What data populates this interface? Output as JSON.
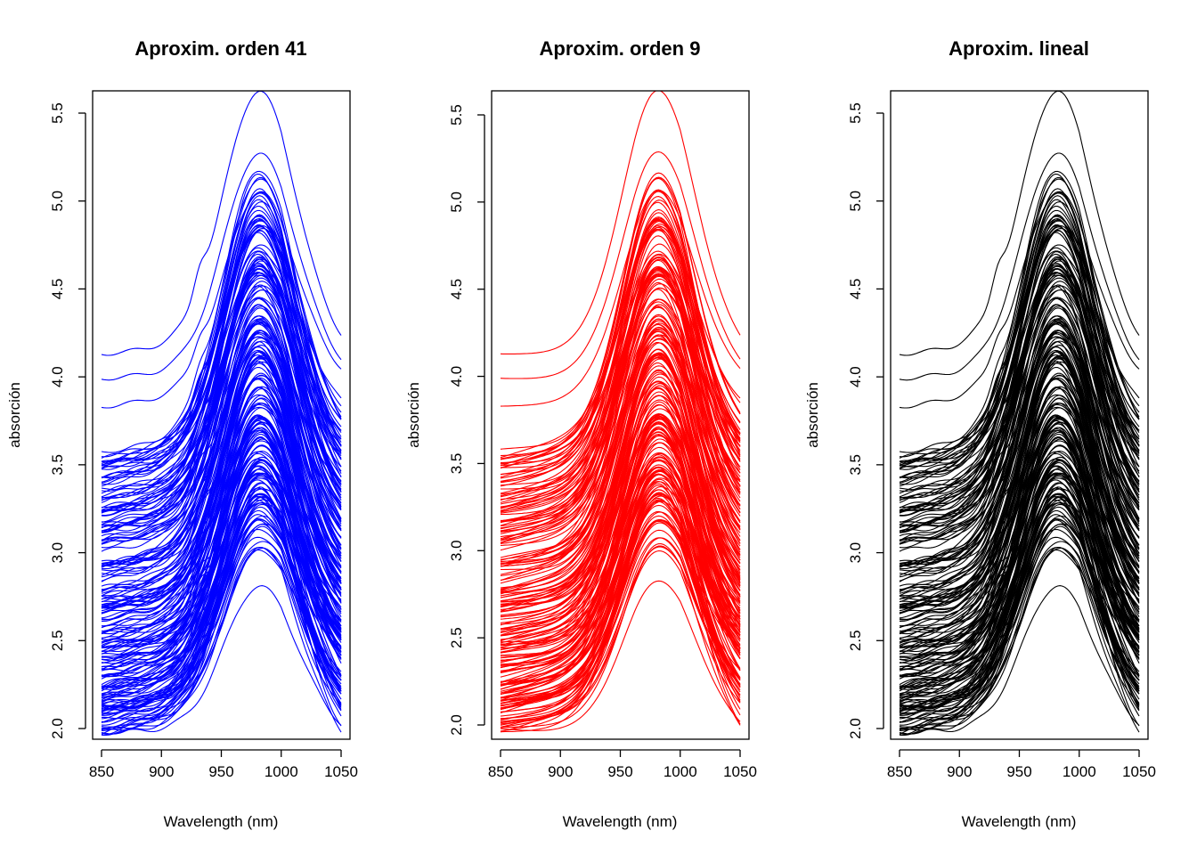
{
  "chart_data": [
    {
      "type": "line",
      "title": "Aproxim. orden 41",
      "xlabel": "Wavelength (nm)",
      "ylabel": "absorción",
      "xlim": [
        850,
        1050
      ],
      "ylim": [
        2.0,
        5.5
      ],
      "x_ticks": [
        "850",
        "900",
        "950",
        "1000",
        "1050"
      ],
      "y_ticks": [
        "2.0",
        "2.5",
        "3.0",
        "3.5",
        "4.0",
        "4.5",
        "5.0",
        "5.5"
      ],
      "line_color": "#0000ff",
      "smoothing": "none",
      "series_count": 215
    },
    {
      "type": "line",
      "title": "Aproxim. orden 9",
      "xlabel": "Wavelength (nm)",
      "ylabel": "absorción",
      "xlim": [
        850,
        1050
      ],
      "ylim": [
        2.0,
        5.5
      ],
      "x_ticks": [
        "850",
        "900",
        "950",
        "1000",
        "1050"
      ],
      "y_ticks": [
        "2.0",
        "2.5",
        "3.0",
        "3.5",
        "4.0",
        "4.5",
        "5.0",
        "5.5"
      ],
      "line_color": "#ff0000",
      "smoothing": "strong",
      "series_count": 215
    },
    {
      "type": "line",
      "title": "Aproxim. lineal",
      "xlabel": "Wavelength (nm)",
      "ylabel": "absorción",
      "xlim": [
        850,
        1050
      ],
      "ylim": [
        2.0,
        5.5
      ],
      "x_ticks": [
        "850",
        "900",
        "950",
        "1000",
        "1050"
      ],
      "y_ticks": [
        "2.0",
        "2.5",
        "3.0",
        "3.5",
        "4.0",
        "4.5",
        "5.0",
        "5.5"
      ],
      "line_color": "#000000",
      "smoothing": "none",
      "series_count": 215
    }
  ]
}
